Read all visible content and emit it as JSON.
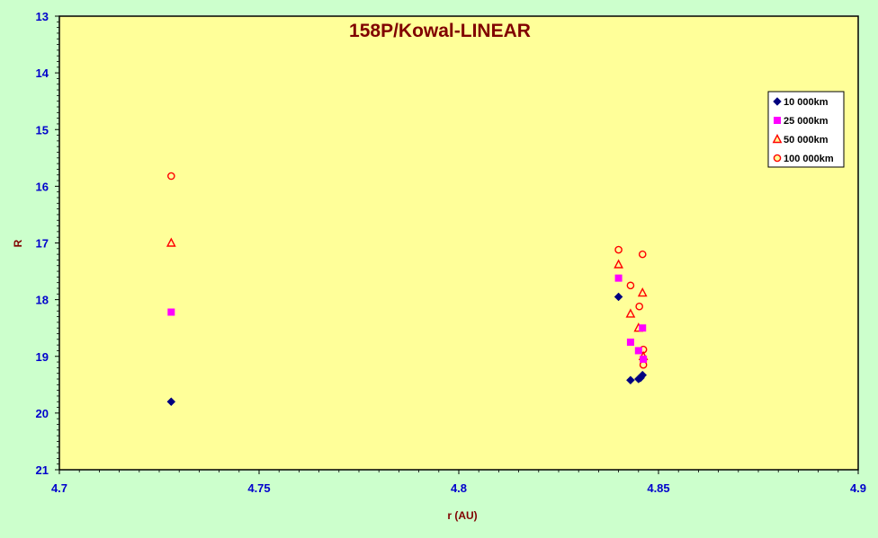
{
  "chart_data": {
    "type": "scatter",
    "title": "158P/Kowal-LINEAR",
    "xlabel": "r (AU)",
    "ylabel": "R",
    "xlim": [
      4.7,
      4.9
    ],
    "ylim": [
      13,
      21
    ],
    "y_inverted": true,
    "x_ticks": [
      "4.7",
      "4.75",
      "4.8",
      "4.85",
      "4.9"
    ],
    "y_ticks": [
      "13",
      "14",
      "15",
      "16",
      "17",
      "18",
      "19",
      "20",
      "21"
    ],
    "grid": false,
    "legend_position": "right",
    "colors": {
      "page_background": "#ccffcc",
      "plot_background": "#ffff99",
      "title": "#800000",
      "axis_title": "#800000",
      "tick_label": "#0000cc"
    },
    "series": [
      {
        "name": "10 000km",
        "marker": "diamond",
        "color": "#000080",
        "points": [
          [
            4.728,
            19.8
          ],
          [
            4.84,
            17.95
          ],
          [
            4.843,
            19.42
          ],
          [
            4.845,
            19.4
          ],
          [
            4.8455,
            19.38
          ],
          [
            4.846,
            19.33
          ]
        ]
      },
      {
        "name": "25 000km",
        "marker": "square",
        "color": "#ff00ff",
        "points": [
          [
            4.728,
            18.22
          ],
          [
            4.84,
            17.62
          ],
          [
            4.843,
            18.75
          ],
          [
            4.845,
            18.9
          ],
          [
            4.846,
            18.5
          ],
          [
            4.8462,
            19.05
          ]
        ]
      },
      {
        "name": "50 000km",
        "marker": "triangle",
        "color": "#ff0000",
        "points": [
          [
            4.728,
            17.0
          ],
          [
            4.84,
            17.38
          ],
          [
            4.843,
            18.25
          ],
          [
            4.845,
            18.5
          ],
          [
            4.846,
            17.88
          ],
          [
            4.8462,
            19.0
          ]
        ]
      },
      {
        "name": "100 000km",
        "marker": "circle",
        "color": "#ff0000",
        "points": [
          [
            4.728,
            15.82
          ],
          [
            4.84,
            17.12
          ],
          [
            4.843,
            17.75
          ],
          [
            4.8452,
            18.12
          ],
          [
            4.846,
            17.2
          ],
          [
            4.8462,
            18.88
          ],
          [
            4.8462,
            19.15
          ]
        ]
      }
    ]
  }
}
